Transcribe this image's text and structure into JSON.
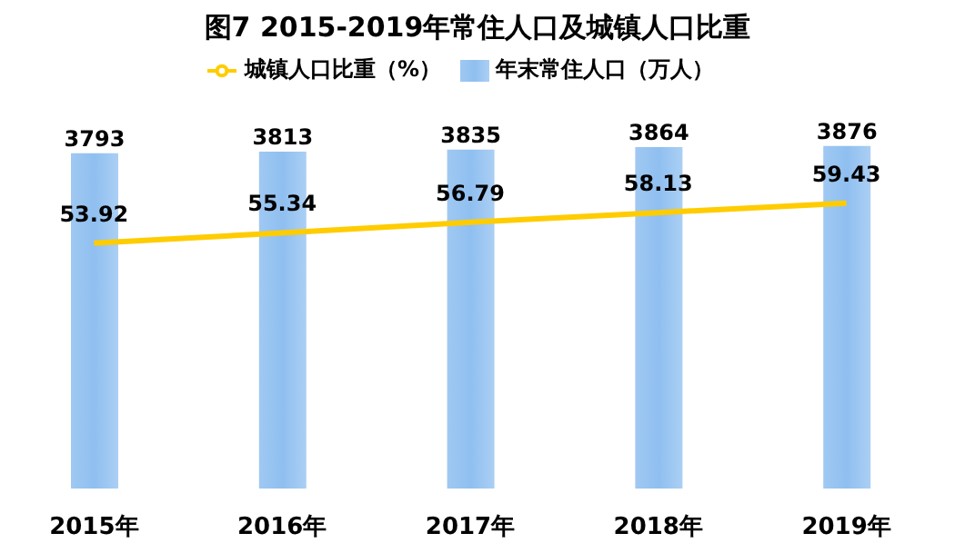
{
  "chart_data": {
    "type": "bar",
    "title": "图7 2015-2019年常住人口及城镇人口比重",
    "categories": [
      "2015年",
      "2016年",
      "2017年",
      "2018年",
      "2019年"
    ],
    "series": [
      {
        "name": "年末常住人口（万人）",
        "color": "#8fbff0",
        "values": [
          3793,
          3813,
          3835,
          3864,
          3876
        ]
      },
      {
        "name": "城镇人口比重（%）",
        "type": "line",
        "axis": "y2",
        "color": "#ffcc00",
        "values": [
          53.92,
          55.34,
          56.79,
          58.13,
          59.43
        ]
      }
    ],
    "data_labels": true,
    "legend": "top",
    "grid": false,
    "marker": "none",
    "line_style": "solid"
  }
}
